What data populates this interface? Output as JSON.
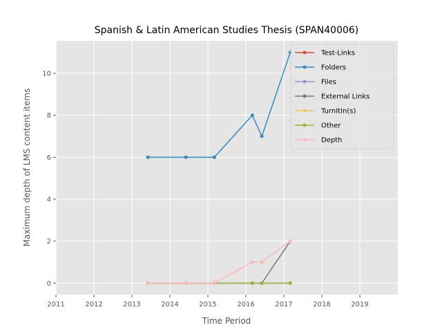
{
  "chart_data": {
    "type": "line",
    "title": "Spanish & Latin American Studies Thesis (SPAN40006)",
    "xlabel": "Time Period",
    "ylabel": "Maximum depth of LMS content items",
    "xlim": [
      2011,
      2020
    ],
    "ylim": [
      -0.55,
      11.55
    ],
    "xticks": [
      "2011",
      "2012",
      "2013",
      "2014",
      "2015",
      "2016",
      "2017",
      "2018",
      "2019"
    ],
    "yticks": [
      "0",
      "2",
      "4",
      "6",
      "8",
      "10"
    ],
    "grid": true,
    "legend_position": "top-right",
    "x": [
      2013.42,
      2014.42,
      2015.17,
      2016.17,
      2016.42,
      2017.17
    ],
    "series": [
      {
        "name": "Test-Links",
        "color": "#E24A33",
        "values": [
          0,
          0,
          0,
          0,
          0,
          0
        ]
      },
      {
        "name": "Folders",
        "color": "#348ABD",
        "values": [
          6,
          6,
          6,
          8,
          7,
          11
        ]
      },
      {
        "name": "Files",
        "color": "#988ED5",
        "values": [
          0,
          0,
          0,
          0,
          0,
          0
        ]
      },
      {
        "name": "External Links",
        "color": "#777777",
        "values": [
          0,
          0,
          0,
          0,
          0,
          2
        ]
      },
      {
        "name": "TurnItIn(s)",
        "color": "#FBC15E",
        "values": [
          0,
          0,
          0,
          0,
          0,
          0
        ]
      },
      {
        "name": "Other",
        "color": "#8EBA42",
        "values": [
          0,
          0,
          0,
          0,
          0,
          0
        ]
      },
      {
        "name": "Depth",
        "color": "#FFB5B8",
        "values": [
          0,
          0,
          0,
          1,
          1,
          2
        ]
      }
    ]
  }
}
